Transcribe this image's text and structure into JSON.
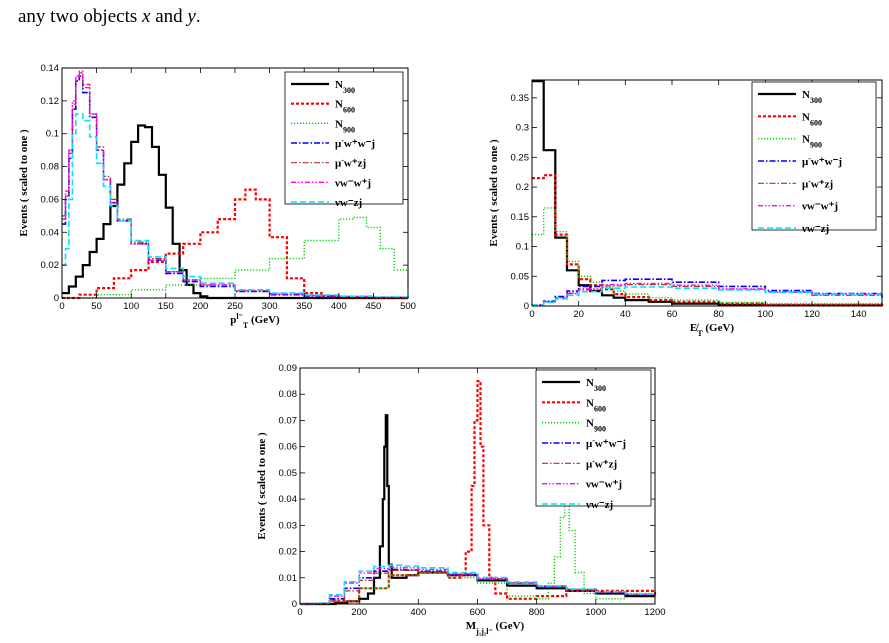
{
  "intro": {
    "pre": "any two objects ",
    "x": "x",
    "mid": " and ",
    "y": "y",
    "post": "."
  },
  "styles": [
    {
      "color": "#000000",
      "dash": "",
      "width": 2.2
    },
    {
      "color": "#ff0000",
      "dash": "3,2",
      "width": 2.2
    },
    {
      "color": "#00cc00",
      "dash": "1.2,1.8",
      "width": 1.4
    },
    {
      "color": "#0000ff",
      "dash": "6,2,1.5,2",
      "width": 1.6
    },
    {
      "color": "#b03030",
      "dash": "6,2,1.5,2",
      "width": 1.2
    },
    {
      "color": "#ff00ff",
      "dash": "5,2,1.5,2,1.5,2",
      "width": 1.4
    },
    {
      "color": "#00e5ee",
      "dash": "6,3",
      "width": 1.6
    }
  ],
  "legend_labels": [
    {
      "base": "N",
      "sub": "300",
      "sup": "",
      "tail": ""
    },
    {
      "base": "N",
      "sub": "600",
      "sup": "",
      "tail": ""
    },
    {
      "base": "N",
      "sub": "900",
      "sup": "",
      "tail": ""
    },
    {
      "base": "μ",
      "sub": "",
      "sup": "-",
      "tail": "w⁺w⁻j"
    },
    {
      "base": "μ",
      "sub": "",
      "sup": "-",
      "tail": "w⁺zj"
    },
    {
      "base": "ν",
      "sub": "",
      "sup": "",
      "tail": "w⁻w⁺j"
    },
    {
      "base": "ν",
      "sub": "",
      "sup": "",
      "tail": "w⁻zj"
    }
  ],
  "chart_data": [
    {
      "type": "line",
      "xlabel": {
        "main": "p",
        "sup": "l⁻",
        "sub": "T",
        "unit": " (GeV)"
      },
      "ylabel": "Events  ( scaled to one )",
      "xlim": [
        0,
        500
      ],
      "ylim": [
        0,
        0.14
      ],
      "xticks": [
        0,
        50,
        100,
        150,
        200,
        250,
        300,
        350,
        400,
        450,
        500
      ],
      "yticks": [
        0,
        0.02,
        0.04,
        0.06,
        0.08,
        0.1,
        0.12,
        0.14
      ],
      "ytick_labels": [
        "0",
        "0.02",
        "0.04",
        "0.06",
        "0.08",
        "0.1",
        "0.12",
        "0.14"
      ],
      "legend_position": "top-right",
      "series": [
        {
          "name": "N300",
          "x": [
            0,
            10,
            20,
            30,
            40,
            50,
            60,
            70,
            80,
            90,
            100,
            110,
            120,
            130,
            140,
            150,
            160,
            170,
            180,
            190,
            200,
            210
          ],
          "y": [
            0.003,
            0.007,
            0.013,
            0.02,
            0.028,
            0.036,
            0.045,
            0.056,
            0.069,
            0.082,
            0.095,
            0.105,
            0.104,
            0.092,
            0.075,
            0.055,
            0.033,
            0.017,
            0.008,
            0.003,
            0.001,
            0
          ]
        },
        {
          "name": "N600",
          "x": [
            0,
            25,
            50,
            75,
            100,
            125,
            150,
            175,
            200,
            225,
            250,
            265,
            280,
            300,
            325,
            350,
            375,
            400
          ],
          "y": [
            0,
            0.002,
            0.006,
            0.012,
            0.017,
            0.022,
            0.027,
            0.033,
            0.04,
            0.048,
            0.06,
            0.066,
            0.06,
            0.037,
            0.012,
            0.003,
            0.001,
            0
          ]
        },
        {
          "name": "N900",
          "x": [
            0,
            50,
            100,
            150,
            200,
            250,
            300,
            350,
            400,
            420,
            440,
            460,
            480,
            500
          ],
          "y": [
            0,
            0.002,
            0.005,
            0.008,
            0.012,
            0.017,
            0.024,
            0.035,
            0.048,
            0.049,
            0.043,
            0.03,
            0.017,
            0.005
          ]
        },
        {
          "name": "μ-w+w-j",
          "x": [
            0,
            5,
            10,
            15,
            20,
            25,
            30,
            40,
            50,
            60,
            70,
            80,
            100,
            125,
            150,
            175,
            200,
            250,
            300,
            350,
            400,
            450,
            500
          ],
          "y": [
            0.045,
            0.06,
            0.085,
            0.115,
            0.132,
            0.135,
            0.125,
            0.11,
            0.09,
            0.072,
            0.058,
            0.047,
            0.033,
            0.023,
            0.015,
            0.01,
            0.007,
            0.004,
            0.002,
            0.0012,
            0.0007,
            0.0004,
            0.0002
          ]
        },
        {
          "name": "μ-w+zj",
          "x": [
            0,
            5,
            10,
            15,
            20,
            25,
            30,
            40,
            50,
            60,
            70,
            80,
            100,
            125,
            150,
            175,
            200,
            250,
            300,
            350,
            400,
            450,
            500
          ],
          "y": [
            0.048,
            0.062,
            0.088,
            0.118,
            0.134,
            0.137,
            0.128,
            0.112,
            0.092,
            0.074,
            0.06,
            0.048,
            0.034,
            0.024,
            0.016,
            0.011,
            0.008,
            0.0045,
            0.0025,
            0.0015,
            0.001,
            0.0005,
            0.0003
          ]
        },
        {
          "name": "νw-w+j",
          "x": [
            0,
            5,
            10,
            15,
            20,
            25,
            30,
            40,
            50,
            60,
            70,
            80,
            100,
            125,
            150,
            175,
            200,
            250,
            300,
            350,
            400,
            450,
            500
          ],
          "y": [
            0.05,
            0.065,
            0.09,
            0.12,
            0.135,
            0.138,
            0.13,
            0.112,
            0.09,
            0.072,
            0.058,
            0.047,
            0.033,
            0.023,
            0.016,
            0.011,
            0.008,
            0.0045,
            0.0025,
            0.0015,
            0.001,
            0.0005,
            0.0003
          ]
        },
        {
          "name": "νw-zj",
          "x": [
            0,
            5,
            10,
            15,
            20,
            25,
            30,
            40,
            50,
            60,
            70,
            80,
            100,
            125,
            150,
            175,
            200,
            250,
            300,
            350,
            400,
            450,
            500
          ],
          "y": [
            0.02,
            0.03,
            0.06,
            0.1,
            0.112,
            0.112,
            0.108,
            0.098,
            0.082,
            0.068,
            0.056,
            0.047,
            0.035,
            0.025,
            0.018,
            0.013,
            0.009,
            0.005,
            0.003,
            0.0018,
            0.0011,
            0.0006,
            0.0003
          ]
        }
      ]
    },
    {
      "type": "line",
      "xlabel": {
        "main": "E̸",
        "sup": "",
        "sub": "T",
        "unit": " (GeV)"
      },
      "ylabel": "Events  ( scaled to one )",
      "xlim": [
        0,
        150
      ],
      "ylim": [
        0,
        0.38
      ],
      "xticks": [
        0,
        20,
        40,
        60,
        80,
        100,
        120,
        140
      ],
      "yticks": [
        0,
        0.05,
        0.1,
        0.15,
        0.2,
        0.25,
        0.3,
        0.35
      ],
      "ytick_labels": [
        "0",
        "0.05",
        "0.1",
        "0.15",
        "0.2",
        "0.25",
        "0.3",
        "0.35"
      ],
      "legend_position": "top-right",
      "series": [
        {
          "name": "N300",
          "x": [
            0,
            5,
            10,
            15,
            20,
            25,
            30,
            35,
            40,
            50,
            60,
            80,
            100,
            150
          ],
          "y": [
            0.378,
            0.262,
            0.115,
            0.06,
            0.035,
            0.025,
            0.018,
            0.014,
            0.01,
            0.007,
            0.004,
            0.002,
            0.001,
            0
          ]
        },
        {
          "name": "N600",
          "x": [
            0,
            5,
            10,
            15,
            20,
            25,
            30,
            35,
            40,
            50,
            60,
            80,
            100,
            150
          ],
          "y": [
            0.215,
            0.22,
            0.12,
            0.07,
            0.045,
            0.035,
            0.028,
            0.02,
            0.015,
            0.01,
            0.007,
            0.004,
            0.002,
            0.001
          ]
        },
        {
          "name": "N900",
          "x": [
            0,
            5,
            10,
            15,
            20,
            25,
            30,
            35,
            40,
            50,
            60,
            80,
            100,
            150
          ],
          "y": [
            0.12,
            0.165,
            0.125,
            0.075,
            0.05,
            0.04,
            0.032,
            0.025,
            0.02,
            0.014,
            0.01,
            0.006,
            0.004,
            0.002
          ]
        },
        {
          "name": "μ-w+w-j",
          "x": [
            0,
            5,
            10,
            15,
            20,
            30,
            40,
            60,
            80,
            100,
            120,
            150
          ],
          "y": [
            0.002,
            0.008,
            0.016,
            0.025,
            0.033,
            0.043,
            0.045,
            0.04,
            0.033,
            0.026,
            0.021,
            0.015
          ]
        },
        {
          "name": "μ-w+zj",
          "x": [
            0,
            5,
            10,
            15,
            20,
            30,
            40,
            60,
            80,
            100,
            120,
            150
          ],
          "y": [
            0.002,
            0.007,
            0.014,
            0.021,
            0.027,
            0.034,
            0.036,
            0.033,
            0.028,
            0.023,
            0.018,
            0.013
          ]
        },
        {
          "name": "νw-w+j",
          "x": [
            0,
            5,
            10,
            15,
            20,
            30,
            40,
            60,
            80,
            100,
            120,
            150
          ],
          "y": [
            0.002,
            0.007,
            0.014,
            0.022,
            0.029,
            0.036,
            0.038,
            0.035,
            0.029,
            0.024,
            0.019,
            0.014
          ]
        },
        {
          "name": "νw-zj",
          "x": [
            0,
            5,
            10,
            15,
            20,
            30,
            40,
            60,
            80,
            100,
            120,
            150
          ],
          "y": [
            0.002,
            0.006,
            0.012,
            0.018,
            0.024,
            0.03,
            0.032,
            0.03,
            0.027,
            0.023,
            0.02,
            0.016
          ]
        }
      ]
    },
    {
      "type": "line",
      "xlabel": {
        "main": "M",
        "sup": "",
        "sub": "j₁j₂l⁻",
        "unit": " (GeV)"
      },
      "ylabel": "Events  ( scaled to one )",
      "xlim": [
        0,
        1200
      ],
      "ylim": [
        0,
        0.09
      ],
      "xticks": [
        0,
        200,
        400,
        600,
        800,
        1000,
        1200
      ],
      "yticks": [
        0,
        0.01,
        0.02,
        0.03,
        0.04,
        0.05,
        0.06,
        0.07,
        0.08,
        0.09
      ],
      "ytick_labels": [
        "0",
        "0.01",
        "0.02",
        "0.03",
        "0.04",
        "0.05",
        "0.06",
        "0.07",
        "0.08",
        "0.09"
      ],
      "legend_position": "top-right",
      "series": [
        {
          "name": "N300",
          "x": [
            0,
            80,
            120,
            160,
            200,
            230,
            250,
            270,
            280,
            285,
            290,
            295,
            300,
            310,
            330,
            360,
            400,
            450,
            500,
            600,
            700,
            800,
            900,
            1000,
            1100,
            1200
          ],
          "y": [
            0,
            0,
            0.0005,
            0.001,
            0.002,
            0.004,
            0.01,
            0.022,
            0.04,
            0.06,
            0.072,
            0.045,
            0.015,
            0.01,
            0.01,
            0.011,
            0.012,
            0.012,
            0.011,
            0.009,
            0.007,
            0.006,
            0.005,
            0.004,
            0.003,
            0.003
          ]
        },
        {
          "name": "N600",
          "x": [
            0,
            100,
            200,
            300,
            400,
            500,
            540,
            560,
            580,
            590,
            600,
            610,
            620,
            640,
            660,
            700,
            800,
            900,
            1000,
            1200
          ],
          "y": [
            0,
            0.001,
            0.006,
            0.011,
            0.012,
            0.01,
            0.011,
            0.02,
            0.045,
            0.07,
            0.085,
            0.06,
            0.03,
            0.01,
            0.004,
            0.002,
            0.003,
            0.005,
            0.005,
            0.003
          ]
        },
        {
          "name": "N900",
          "x": [
            0,
            100,
            200,
            300,
            400,
            500,
            600,
            700,
            800,
            840,
            860,
            880,
            895,
            910,
            930,
            960,
            1000,
            1100,
            1200
          ],
          "y": [
            0,
            0.001,
            0.006,
            0.011,
            0.012,
            0.01,
            0.008,
            0.003,
            0.002,
            0.008,
            0.018,
            0.033,
            0.038,
            0.028,
            0.012,
            0.004,
            0.002,
            0.004,
            0.005
          ]
        },
        {
          "name": "μ-w+w-j",
          "x": [
            0,
            60,
            100,
            150,
            200,
            250,
            300,
            350,
            400,
            500,
            600,
            700,
            800,
            900,
            1000,
            1100,
            1200
          ],
          "y": [
            0,
            0.0002,
            0.002,
            0.006,
            0.01,
            0.0125,
            0.0132,
            0.013,
            0.0125,
            0.0112,
            0.0095,
            0.008,
            0.0068,
            0.0055,
            0.0045,
            0.0035,
            0.003
          ]
        },
        {
          "name": "μ-w+zj",
          "x": [
            0,
            60,
            100,
            150,
            200,
            250,
            300,
            350,
            400,
            500,
            600,
            700,
            800,
            900,
            1000,
            1100,
            1200
          ],
          "y": [
            0,
            0.0001,
            0.0015,
            0.005,
            0.009,
            0.0118,
            0.0128,
            0.0128,
            0.0122,
            0.011,
            0.0094,
            0.008,
            0.0066,
            0.0054,
            0.0044,
            0.0036,
            0.003
          ]
        },
        {
          "name": "νw-w+j",
          "x": [
            0,
            60,
            100,
            150,
            200,
            250,
            300,
            350,
            400,
            500,
            600,
            700,
            800,
            900,
            1000,
            1100,
            1200
          ],
          "y": [
            0,
            0.0003,
            0.003,
            0.008,
            0.0118,
            0.0135,
            0.014,
            0.0138,
            0.0132,
            0.0115,
            0.0097,
            0.0081,
            0.0068,
            0.0056,
            0.0046,
            0.0037,
            0.003
          ]
        },
        {
          "name": "νw-zj",
          "x": [
            0,
            60,
            100,
            150,
            200,
            250,
            300,
            350,
            400,
            500,
            600,
            700,
            800,
            900,
            1000,
            1100,
            1200
          ],
          "y": [
            0,
            0.0004,
            0.0035,
            0.0085,
            0.0125,
            0.0143,
            0.0148,
            0.0145,
            0.0138,
            0.012,
            0.0101,
            0.0084,
            0.0069,
            0.0057,
            0.0047,
            0.0038,
            0.0031
          ]
        }
      ]
    }
  ]
}
